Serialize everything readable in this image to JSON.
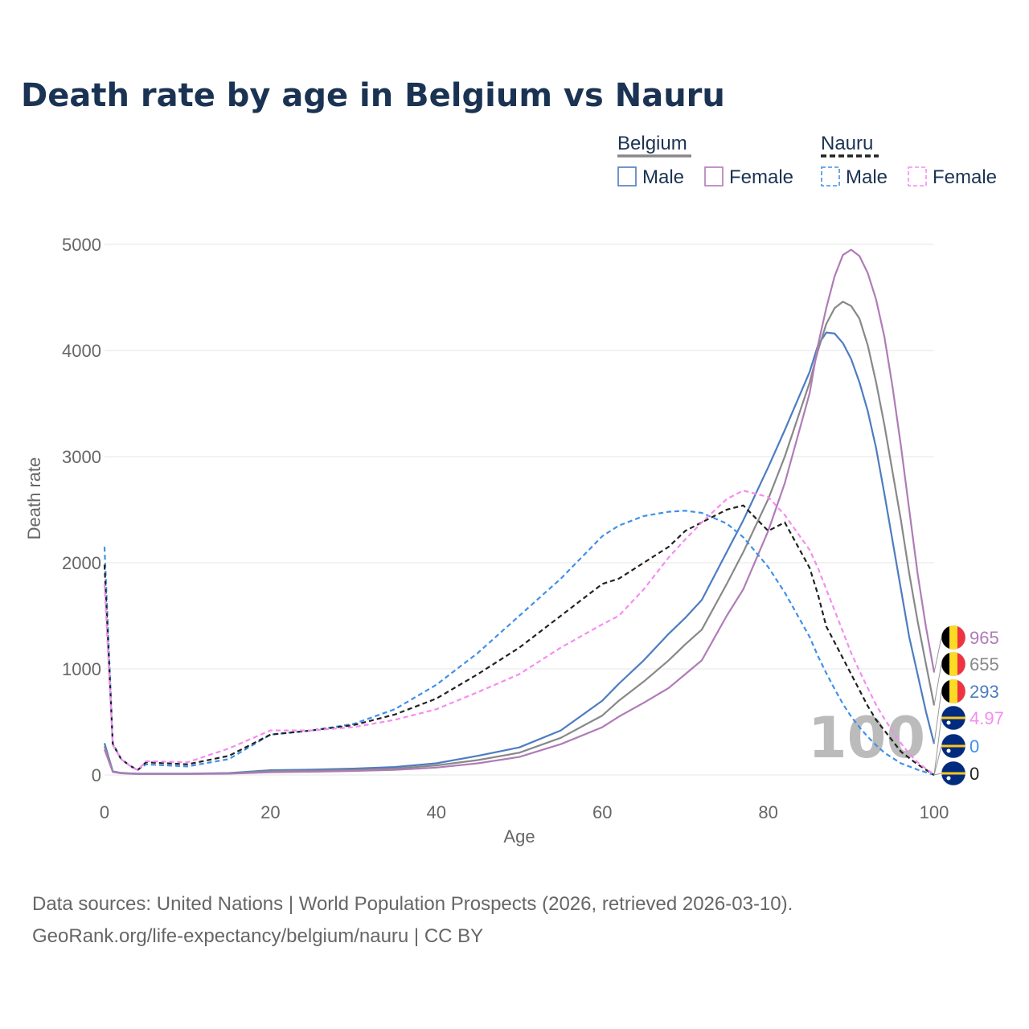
{
  "chart_data": {
    "type": "line",
    "title": "Death rate by age in Belgium vs Nauru",
    "xlabel": "Age",
    "ylabel": "Death rate",
    "xlim": [
      0,
      100
    ],
    "ylim": [
      0,
      5000
    ],
    "xticks": [
      "0",
      "20",
      "40",
      "60",
      "80",
      "100"
    ],
    "yticks": [
      "0",
      "1000",
      "2000",
      "3000",
      "4000",
      "5000"
    ],
    "year_label": "100",
    "legend": {
      "groups": [
        {
          "name": "Belgium",
          "line_color": "#888888",
          "dashed": false,
          "items": [
            {
              "label": "Male",
              "color": "#4d7cc0"
            },
            {
              "label": "Female",
              "color": "#b07bb8"
            }
          ]
        },
        {
          "name": "Nauru",
          "line_color": "#222222",
          "dashed": true,
          "items": [
            {
              "label": "Male",
              "color": "#4090e8"
            },
            {
              "label": "Female",
              "color": "#f58cf0"
            }
          ]
        }
      ]
    },
    "x": [
      0,
      1,
      2,
      3,
      4,
      5,
      10,
      15,
      20,
      25,
      30,
      35,
      40,
      45,
      50,
      55,
      60,
      62,
      65,
      68,
      70,
      72,
      75,
      77,
      80,
      82,
      85,
      86,
      87,
      88,
      89,
      90,
      91,
      92,
      93,
      94,
      95,
      96,
      97,
      98,
      99,
      100
    ],
    "series": [
      {
        "name": "Belgium Male",
        "country": "Belgium",
        "color": "#4d7cc0",
        "dash": false,
        "end_label": "293",
        "values": [
          300,
          35,
          20,
          15,
          12,
          12,
          12,
          18,
          45,
          50,
          60,
          75,
          110,
          180,
          260,
          420,
          700,
          860,
          1080,
          1330,
          1480,
          1650,
          2100,
          2400,
          2900,
          3250,
          3800,
          4050,
          4170,
          4160,
          4070,
          3920,
          3700,
          3430,
          3080,
          2650,
          2200,
          1750,
          1300,
          950,
          600,
          293
        ]
      },
      {
        "name": "Belgium Both",
        "country": "Belgium",
        "color": "#888888",
        "dash": false,
        "end_label": "655",
        "values": [
          270,
          30,
          18,
          13,
          10,
          10,
          10,
          15,
          35,
          40,
          48,
          60,
          90,
          140,
          210,
          350,
          560,
          700,
          880,
          1080,
          1230,
          1370,
          1800,
          2100,
          2600,
          3000,
          3700,
          4000,
          4250,
          4400,
          4460,
          4420,
          4300,
          4050,
          3700,
          3300,
          2850,
          2400,
          1900,
          1450,
          1050,
          655
        ]
      },
      {
        "name": "Belgium Female",
        "country": "Belgium",
        "color": "#b07bb8",
        "dash": false,
        "end_label": "965",
        "values": [
          240,
          28,
          16,
          12,
          9,
          9,
          9,
          12,
          25,
          30,
          38,
          48,
          70,
          110,
          170,
          290,
          450,
          550,
          680,
          820,
          950,
          1080,
          1500,
          1750,
          2300,
          2750,
          3600,
          4050,
          4400,
          4700,
          4900,
          4950,
          4890,
          4730,
          4480,
          4130,
          3650,
          3100,
          2500,
          1900,
          1400,
          965
        ]
      },
      {
        "name": "Nauru Male",
        "country": "Nauru",
        "color": "#4090e8",
        "dash": true,
        "end_label": "0",
        "values": [
          2150,
          300,
          150,
          90,
          50,
          100,
          80,
          150,
          380,
          420,
          480,
          620,
          850,
          1150,
          1500,
          1850,
          2250,
          2350,
          2440,
          2480,
          2490,
          2470,
          2370,
          2240,
          1960,
          1720,
          1300,
          1120,
          960,
          810,
          670,
          550,
          450,
          360,
          280,
          210,
          160,
          110,
          80,
          50,
          25,
          0
        ]
      },
      {
        "name": "Nauru Both",
        "country": "Nauru",
        "color": "#222222",
        "dash": true,
        "end_label": "0",
        "values": [
          1980,
          290,
          150,
          90,
          45,
          120,
          100,
          180,
          380,
          420,
          470,
          570,
          720,
          950,
          1200,
          1500,
          1800,
          1850,
          2000,
          2150,
          2300,
          2380,
          2500,
          2540,
          2300,
          2380,
          1950,
          1700,
          1400,
          1250,
          1100,
          950,
          800,
          650,
          520,
          420,
          320,
          220,
          160,
          100,
          50,
          0
        ]
      },
      {
        "name": "Nauru Female",
        "country": "Nauru",
        "color": "#f58cf0",
        "dash": true,
        "end_label": "4.97",
        "values": [
          1800,
          280,
          150,
          90,
          45,
          130,
          120,
          250,
          420,
          420,
          450,
          520,
          620,
          780,
          950,
          1200,
          1420,
          1500,
          1750,
          2050,
          2220,
          2380,
          2600,
          2680,
          2620,
          2450,
          2120,
          1950,
          1750,
          1550,
          1350,
          1150,
          980,
          820,
          660,
          530,
          410,
          300,
          200,
          120,
          60,
          5
        ]
      }
    ]
  },
  "footer": {
    "line1": "Data sources: United Nations | World Population Prospects (2026, retrieved 2026-03-10).",
    "line2": "GeoRank.org/life-expectancy/belgium/nauru | CC BY"
  }
}
